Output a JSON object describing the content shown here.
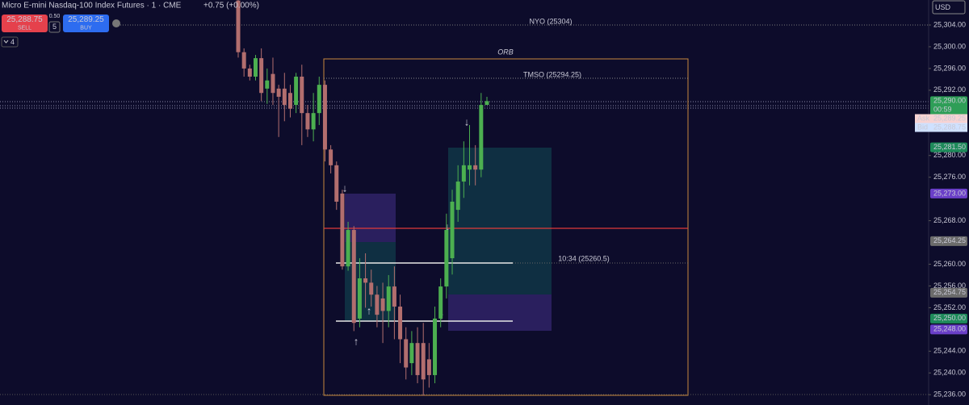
{
  "header": {
    "title": "Micro E-mini Nasdaq-100 Index Futures · 1 · CME",
    "change": "+0.75 (+0.00%)",
    "sell_price": "25,288.75",
    "sell": "SELL",
    "spread": "0.50",
    "quantity": "5",
    "buy_price": "25,289.25",
    "buy": "BUY",
    "indicators_count": "4",
    "currency": "USD"
  },
  "annotations": {
    "nyo": "NYO (25304)",
    "orb": "ORB",
    "tmso": "TMSO (25294.25)",
    "level": "10:34 (25260.5)"
  },
  "chart_data": {
    "type": "candlestick",
    "up_color": "#4caf50",
    "down_color": "#b26e6e",
    "ylim": [
      25234.1,
      25308.6
    ],
    "yticks": [
      {
        "value": 25236,
        "label": "25,236.00"
      },
      {
        "value": 25240,
        "label": "25,240.00"
      },
      {
        "value": 25244,
        "label": "25,244.00"
      },
      {
        "value": 25252,
        "label": "25,252.00"
      },
      {
        "value": 25256,
        "label": "25,256.00"
      },
      {
        "value": 25260,
        "label": "25,260.00"
      },
      {
        "value": 25268,
        "label": "25,268.00"
      },
      {
        "value": 25276,
        "label": "25,276.00"
      },
      {
        "value": 25280,
        "label": "25,280.00"
      },
      {
        "value": 25292,
        "label": "25,292.00"
      },
      {
        "value": 25296,
        "label": "25,296.00"
      },
      {
        "value": 25300,
        "label": "25,300.00"
      },
      {
        "value": 25304,
        "label": "25,304.00"
      }
    ],
    "open": [
      25308.5,
      25299,
      25296,
      25294.5,
      25297.9,
      25292.3,
      25295,
      25292.3,
      25292.3,
      25291.5,
      25289.3,
      25294.5,
      25287.8,
      25284.8,
      25287.8,
      25293,
      25281.1,
      25278.2,
      25273,
      25259.6,
      25266.3,
      25250,
      25257.4,
      25256.6,
      25254.4,
      25253.7,
      25251.4,
      25255.9,
      25252.2,
      25246.2,
      25241.8,
      25245.5,
      25245.5,
      25242.5,
      25239.6,
      25250,
      25255.9,
      25261.1,
      25270,
      25275.2,
      25277.4,
      25278.2,
      25277.4,
      25289.3
    ],
    "high": [
      25308.6,
      25299.7,
      25296.7,
      25298.5,
      25299.7,
      25296,
      25298,
      25293,
      25295.2,
      25293,
      25295.2,
      25296.7,
      25289.3,
      25291.5,
      25294.5,
      25293.8,
      25281.9,
      25278.9,
      25273.7,
      25267.8,
      25267,
      25261.1,
      25262,
      25259,
      25256,
      25256.6,
      25258,
      25259.6,
      25254.4,
      25248.4,
      25247.7,
      25248.4,
      25249.2,
      25245.5,
      25252.2,
      25257.4,
      25269.3,
      25273.7,
      25278.2,
      25282.6,
      25285.6,
      25281.9,
      25291.5,
      25290.8
    ],
    "low": [
      25298,
      25294.5,
      25293.8,
      25293.8,
      25290,
      25289.5,
      25289.3,
      25283.4,
      25286.3,
      25287,
      25287.8,
      25281.9,
      25283.4,
      25282.6,
      25285.6,
      25278.9,
      25276.7,
      25270,
      25259,
      25258.8,
      25247.7,
      25248.4,
      25252,
      25252.2,
      25248.4,
      25245.5,
      25248.4,
      25246.2,
      25241.8,
      25238.8,
      25239.6,
      25238.1,
      25235.8,
      25237.3,
      25238.1,
      25248.4,
      25253.7,
      25258.1,
      25267.8,
      25272.2,
      25274.5,
      25274.5,
      25276,
      25289.3
    ],
    "close": [
      25299,
      25296,
      25294.5,
      25297.9,
      25291.5,
      25293.8,
      25291.5,
      25290.8,
      25289.3,
      25288.6,
      25294.5,
      25287.8,
      25284.8,
      25287.8,
      25293,
      25281.1,
      25278.2,
      25271.5,
      25259.6,
      25266.3,
      25249.2,
      25257.4,
      25256.6,
      25254.4,
      25250.7,
      25251.4,
      25255.9,
      25252.2,
      25246.2,
      25241,
      25245.5,
      25239.6,
      25238.8,
      25239.6,
      25250,
      25255.9,
      25266.3,
      25271.5,
      25275.2,
      25278.2,
      25278.2,
      25277.4,
      25289.3,
      25290
    ],
    "badges": [
      {
        "value": 25290,
        "label": "25,290.00",
        "color": "#2e9e57",
        "sub": "00:59"
      },
      {
        "value": 25281.5,
        "label": "25,281.50",
        "color": "#1e8a5a"
      },
      {
        "value": 25273,
        "label": "25,273.00",
        "color": "#6a3fc8"
      },
      {
        "value": 25264.25,
        "label": "25,264.25",
        "color": "#6b6b6b"
      },
      {
        "value": 25254.75,
        "label": "25,254.75",
        "color": "#6b6b6b"
      },
      {
        "value": 25250,
        "label": "25,250.00",
        "color": "#1e8a5a"
      },
      {
        "value": 25248,
        "label": "25,248.00",
        "color": "#6a3fc8"
      }
    ],
    "ask": {
      "tag": "Ask",
      "label": "25,289.25"
    },
    "bid": {
      "tag": "Bid",
      "label": "25,288.75"
    }
  }
}
